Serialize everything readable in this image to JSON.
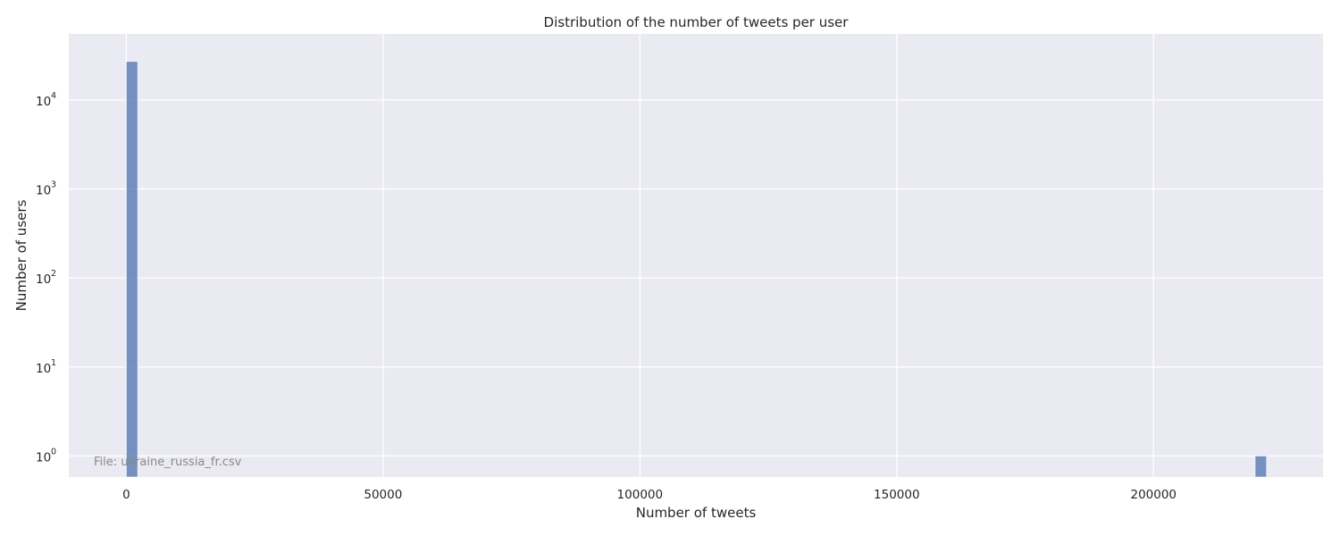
{
  "chart_data": {
    "type": "bar",
    "title": "Distribution of the number of tweets per user",
    "xlabel": "Number of tweets",
    "ylabel": "Number of users",
    "yscale": "log",
    "xlim": [
      -11200,
      233000
    ],
    "ylim": [
      0.58,
      55000
    ],
    "xticks": [
      0,
      50000,
      100000,
      150000,
      200000
    ],
    "yticks": [
      {
        "base": "10",
        "exp": "0",
        "value": 1
      },
      {
        "base": "10",
        "exp": "1",
        "value": 10
      },
      {
        "base": "10",
        "exp": "2",
        "value": 100
      },
      {
        "base": "10",
        "exp": "3",
        "value": 1000
      },
      {
        "base": "10",
        "exp": "4",
        "value": 10000
      }
    ],
    "bins": [
      {
        "x0": 0,
        "x1": 2220,
        "count": 27000
      },
      {
        "x0": 219780,
        "x1": 222000,
        "count": 1
      }
    ],
    "grid": true,
    "bar_color": "#4c72b0",
    "background_color": "#eaeaf2",
    "annotation": "File: ukraine_russia_fr.csv"
  }
}
